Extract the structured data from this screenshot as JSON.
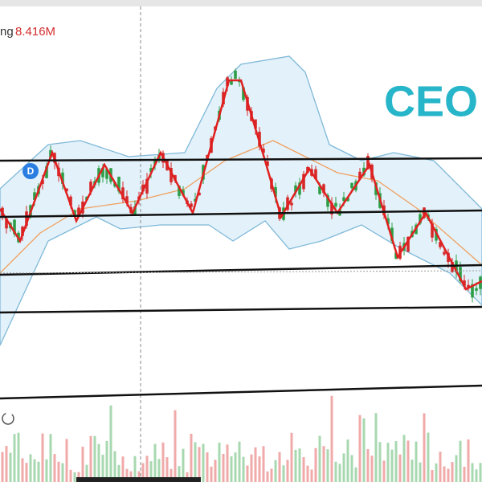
{
  "legend": {
    "label": "ng",
    "volume": "8.416M"
  },
  "watermark": "CEO",
  "marker": "D"
}
